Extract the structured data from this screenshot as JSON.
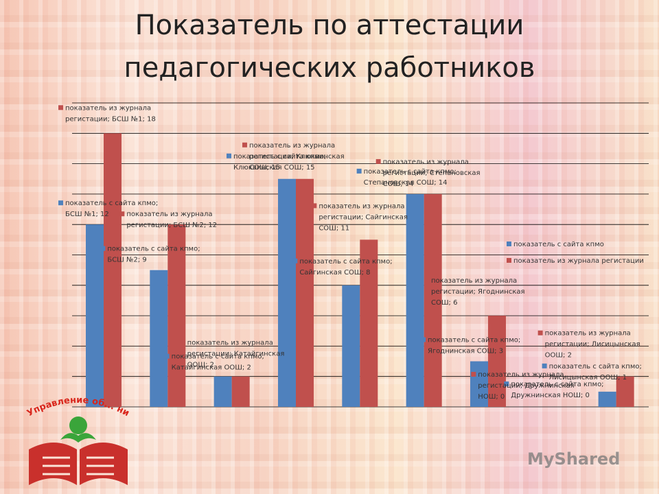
{
  "title": {
    "line1": "Показатель по аттестации",
    "line2": "педагогических работников"
  },
  "watermark": "MyShared",
  "logo": {
    "text": "Управление об... ния"
  },
  "chart_data": {
    "type": "bar",
    "ylim": [
      0,
      20
    ],
    "grid": true,
    "legend_position": "right",
    "series_colors": [
      "#4f81bd",
      "#c0504d"
    ],
    "categories": [
      "БСШ №1",
      "БСШ №2",
      "Катайгинская ООШ",
      "Клюквинская СОШ",
      "Сайгинская СОШ",
      "Степановская СОШ",
      "Ягоднинская СОШ",
      "Дружнинская НОШ",
      "Лисицынская ООШ"
    ],
    "series": [
      {
        "name": "показатель с сайта кпмо",
        "values": [
          12,
          9,
          2,
          15,
          8,
          14,
          3,
          0,
          1
        ]
      },
      {
        "name": "показатель из журнала регистации",
        "values": [
          18,
          12,
          2,
          15,
          11,
          14,
          6,
          0,
          2
        ]
      }
    ],
    "data_labels": [
      {
        "series": 0,
        "index": 0,
        "lines": [
          "показатель с сайта кпмо;",
          "БСШ №1; 12"
        ]
      },
      {
        "series": 1,
        "index": 0,
        "lines": [
          "показатель из журнала",
          "регистации; БСШ №1; 18"
        ]
      },
      {
        "series": 0,
        "index": 1,
        "lines": [
          "показатель с сайта кпмо;",
          "БСШ №2; 9"
        ]
      },
      {
        "series": 1,
        "index": 1,
        "lines": [
          "показатель из журнала",
          "регистации; БСШ №2; 12"
        ]
      },
      {
        "series": 0,
        "index": 2,
        "lines": [
          "показатель с сайта кпмо;",
          "Катайгинская ООШ; 2"
        ]
      },
      {
        "series": 1,
        "index": 2,
        "lines": [
          "показатель из журнала",
          "регистации; Катайгинская",
          "ООШ; 2"
        ]
      },
      {
        "series": 0,
        "index": 3,
        "lines": [
          "показатель с сайта кпмо;",
          "Клюквинская СОШ; 15"
        ]
      },
      {
        "series": 1,
        "index": 3,
        "lines": [
          "показатель из журнала",
          "регистации; Клюквинская",
          "СОШ; 15"
        ]
      },
      {
        "series": 0,
        "index": 4,
        "lines": [
          "показатель с сайта кпмо;",
          "Сайгинская СОШ; 8"
        ]
      },
      {
        "series": 1,
        "index": 4,
        "lines": [
          "показатель из журнала",
          "регистации; Сайгинская",
          "СОШ; 11"
        ]
      },
      {
        "series": 0,
        "index": 5,
        "lines": [
          "показатель с сайта кпмо;",
          "Степановская СОШ; 14"
        ]
      },
      {
        "series": 1,
        "index": 5,
        "lines": [
          "показатель из журнала",
          "регистации; Степановская",
          "СОШ; 14"
        ]
      },
      {
        "series": 0,
        "index": 6,
        "lines": [
          "показатель с сайта кпмо;",
          "Ягоднинская СОШ; 3"
        ]
      },
      {
        "series": 1,
        "index": 6,
        "lines": [
          "показатель из журнала",
          "регистации; Ягоднинская",
          "СОШ; 6"
        ]
      },
      {
        "series": 0,
        "index": 7,
        "lines": [
          "показатель с сайта кпмо;",
          "Дружнинская НОШ; 0"
        ]
      },
      {
        "series": 1,
        "index": 7,
        "lines": [
          "показатель из журнала",
          "регистации; Дружнинская",
          "НОШ; 0"
        ]
      },
      {
        "series": 0,
        "index": 8,
        "lines": [
          "показатель с сайта кпмо;",
          "Лисицынская ООШ; 1"
        ]
      },
      {
        "series": 1,
        "index": 8,
        "lines": [
          "показатель из журнала",
          "регистации; Лисицынская",
          "ООШ; 2"
        ]
      }
    ]
  }
}
